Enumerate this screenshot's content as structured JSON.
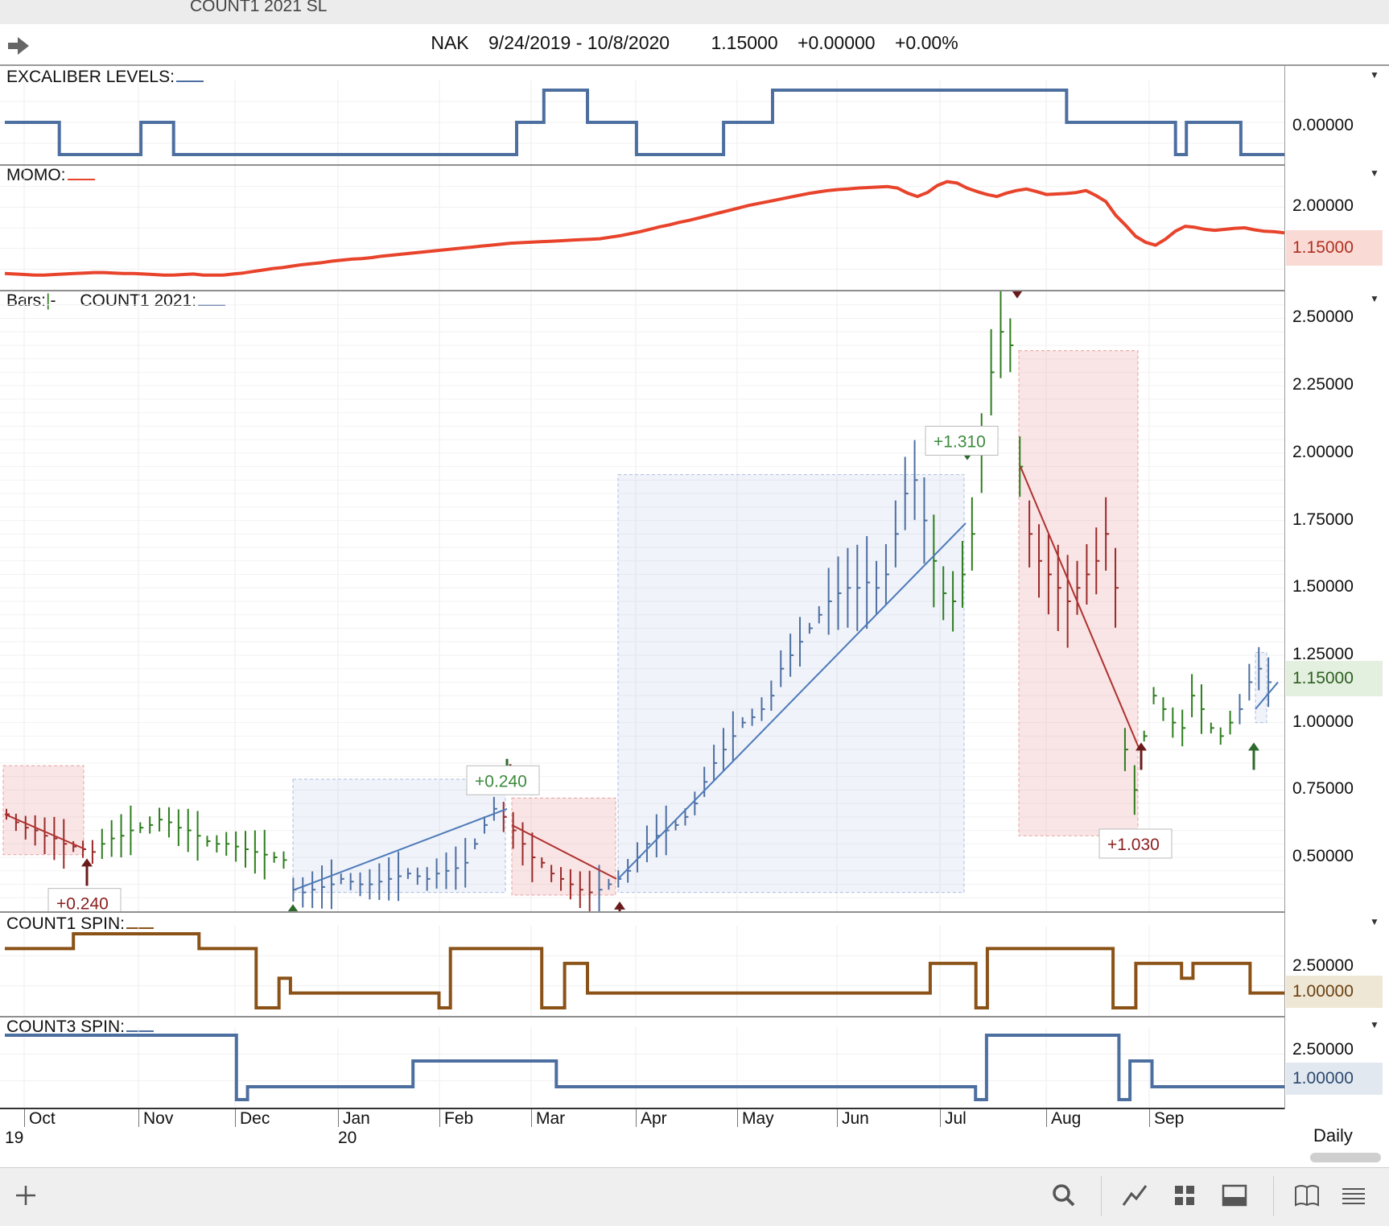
{
  "window": {
    "title_fragment": "COUNT1 2021  SL"
  },
  "header": {
    "symbol": "NAK",
    "date_range": "9/24/2019 - 10/8/2020",
    "last": "1.15000",
    "change": "+0.00000",
    "change_pct": "+0.00%"
  },
  "panes": {
    "excaliber": {
      "label": "EXCALIBER LEVELS:",
      "tick": "0.00000",
      "values": [
        1,
        1,
        1,
        1,
        1,
        1,
        1,
        1,
        1,
        1,
        0,
        0,
        0,
        0,
        0,
        0,
        0,
        0,
        0,
        0,
        0,
        0,
        0,
        0,
        0,
        1,
        1,
        1,
        1,
        1,
        1,
        0,
        0,
        0,
        0,
        0,
        0,
        0,
        0,
        0,
        0,
        0,
        0,
        0,
        0,
        0,
        0,
        0,
        0,
        0,
        0,
        0,
        0,
        0,
        0,
        0,
        0,
        0,
        0,
        0,
        0,
        0,
        0,
        0,
        0,
        0,
        0,
        0,
        0,
        0,
        0,
        0,
        0,
        0,
        0,
        0,
        0,
        0,
        0,
        0,
        0,
        0,
        0,
        0,
        0,
        0,
        0,
        0,
        0,
        0,
        0,
        0,
        0,
        0,
        1,
        1,
        1,
        1,
        1,
        2,
        2,
        2,
        2,
        2,
        2,
        2,
        2,
        1,
        1,
        1,
        1,
        1,
        1,
        1,
        1,
        1,
        0,
        0,
        0,
        0,
        0,
        0,
        0,
        0,
        0,
        0,
        0,
        0,
        0,
        0,
        0,
        0,
        1,
        1,
        1,
        1,
        1,
        1,
        1,
        1,
        1,
        2,
        2,
        2,
        2,
        2,
        2,
        2,
        2,
        2,
        2,
        2,
        2,
        2,
        2,
        2,
        2,
        2,
        2,
        2,
        2,
        2,
        2,
        2,
        2,
        2,
        2,
        2,
        2,
        2,
        2,
        2,
        2,
        2,
        2,
        2,
        2,
        2,
        2,
        2,
        2,
        2,
        2,
        2,
        2,
        2,
        2,
        2,
        2,
        2,
        2,
        2,
        2,
        2,
        2,
        1,
        1,
        1,
        1,
        1,
        1,
        1,
        1,
        1,
        1,
        1,
        1,
        1,
        1,
        1,
        1,
        1,
        1,
        1,
        1,
        0,
        0,
        1,
        1,
        1,
        1,
        1,
        1,
        1,
        1,
        1,
        1,
        0,
        0,
        0,
        0,
        0,
        0,
        0,
        0
      ]
    },
    "momo": {
      "label": "MOMO:",
      "ticks": [
        "2.00000"
      ],
      "last_tag": "1.15000"
    },
    "bars": {
      "label": "Bars:",
      "label2": "COUNT1 2021:",
      "ticks": [
        "2.50000",
        "2.25000",
        "2.00000",
        "1.75000",
        "1.50000",
        "1.25000",
        "1.00000",
        "0.75000",
        "0.50000"
      ],
      "last_tag": "1.15000",
      "annotations": [
        "+0.240",
        "+0.240",
        "+1.310",
        "+1.030"
      ]
    },
    "count1": {
      "label": "COUNT1 SPIN:",
      "ticks": [
        "2.50000"
      ],
      "last_tag": "1.00000"
    },
    "count3": {
      "label": "COUNT3 SPIN:",
      "ticks": [
        "2.50000"
      ],
      "last_tag": "1.00000"
    }
  },
  "chart_data": [
    {
      "type": "line",
      "title": "MOMO",
      "values": [
        0.33,
        0.32,
        0.31,
        0.3,
        0.3,
        0.31,
        0.32,
        0.33,
        0.34,
        0.35,
        0.35,
        0.34,
        0.33,
        0.33,
        0.32,
        0.31,
        0.3,
        0.3,
        0.31,
        0.32,
        0.3,
        0.3,
        0.3,
        0.32,
        0.34,
        0.37,
        0.4,
        0.43,
        0.45,
        0.48,
        0.51,
        0.53,
        0.55,
        0.58,
        0.6,
        0.62,
        0.63,
        0.65,
        0.68,
        0.7,
        0.72,
        0.74,
        0.76,
        0.78,
        0.8,
        0.82,
        0.84,
        0.86,
        0.88,
        0.9,
        0.92,
        0.94,
        0.95,
        0.96,
        0.97,
        0.98,
        0.99,
        1.0,
        1.01,
        1.02,
        1.03,
        1.06,
        1.09,
        1.13,
        1.17,
        1.22,
        1.27,
        1.31,
        1.36,
        1.4,
        1.45,
        1.5,
        1.55,
        1.6,
        1.65,
        1.7,
        1.74,
        1.78,
        1.82,
        1.86,
        1.9,
        1.94,
        1.97,
        2.0,
        2.02,
        2.03,
        2.05,
        2.06,
        2.07,
        2.08,
        2.05,
        1.95,
        1.88,
        1.96,
        2.1,
        2.18,
        2.15,
        2.05,
        1.98,
        1.92,
        1.88,
        1.95,
        2.0,
        2.03,
        1.98,
        1.92,
        1.93,
        1.94,
        1.96,
        2.0,
        1.9,
        1.78,
        1.5,
        1.3,
        1.08,
        0.96,
        0.9,
        1.02,
        1.18,
        1.28,
        1.26,
        1.22,
        1.2,
        1.22,
        1.24,
        1.25,
        1.21,
        1.18,
        1.17,
        1.15
      ],
      "yticks": [
        2.0
      ],
      "last": 1.15
    },
    {
      "type": "bar",
      "title": "Bars",
      "x_months": [
        "Oct",
        "Nov",
        "Dec",
        "Jan",
        "Feb",
        "Mar",
        "Apr",
        "May",
        "Jun",
        "Jul",
        "Aug",
        "Sep"
      ],
      "ylim": [
        0.3,
        2.6
      ],
      "ticks": [
        0.5,
        0.75,
        1.0,
        1.25,
        1.5,
        1.75,
        2.0,
        2.25,
        2.5
      ],
      "closes": [
        0.66,
        0.63,
        0.61,
        0.6,
        0.58,
        0.57,
        0.55,
        0.54,
        0.53,
        0.52,
        0.55,
        0.57,
        0.58,
        0.6,
        0.61,
        0.62,
        0.64,
        0.63,
        0.61,
        0.6,
        0.58,
        0.56,
        0.55,
        0.55,
        0.54,
        0.53,
        0.52,
        0.51,
        0.5,
        0.49,
        0.38,
        0.37,
        0.38,
        0.39,
        0.4,
        0.42,
        0.41,
        0.4,
        0.4,
        0.41,
        0.42,
        0.43,
        0.44,
        0.43,
        0.42,
        0.44,
        0.45,
        0.46,
        0.48,
        0.55,
        0.62,
        0.68,
        0.65,
        0.6,
        0.55,
        0.5,
        0.48,
        0.44,
        0.42,
        0.4,
        0.38,
        0.37,
        0.38,
        0.4,
        0.42,
        0.45,
        0.5,
        0.55,
        0.58,
        0.6,
        0.62,
        0.65,
        0.7,
        0.78,
        0.85,
        0.9,
        0.95,
        1.0,
        1.02,
        1.05,
        1.1,
        1.2,
        1.25,
        1.3,
        1.35,
        1.4,
        1.45,
        1.48,
        1.5,
        1.5,
        1.52,
        1.5,
        1.55,
        1.7,
        1.85,
        1.9,
        1.75,
        1.6,
        1.48,
        1.45,
        1.55,
        1.7,
        2.0,
        2.3,
        2.45,
        2.4,
        1.95,
        1.7,
        1.6,
        1.55,
        1.5,
        1.45,
        1.5,
        1.55,
        1.6,
        1.7,
        1.5,
        0.9,
        0.75,
        0.95,
        1.1,
        1.05,
        1.0,
        0.98,
        1.1,
        1.05,
        0.98,
        0.95,
        1.0,
        1.05,
        1.15,
        1.2,
        1.15
      ]
    },
    {
      "type": "line",
      "title": "COUNT1 SPIN",
      "values": [
        2.5,
        2.5,
        2.5,
        2.5,
        2.5,
        2.5,
        3.0,
        3.0,
        3.0,
        3.0,
        3.0,
        3.0,
        3.0,
        3.0,
        3.0,
        3.0,
        3.0,
        2.5,
        2.5,
        2.5,
        2.5,
        2.5,
        0.5,
        0.5,
        1.5,
        1.0,
        1.0,
        1.0,
        1.0,
        1.0,
        1.0,
        1.0,
        1.0,
        1.0,
        1.0,
        1.0,
        1.0,
        1.0,
        0.5,
        2.5,
        2.5,
        2.5,
        2.5,
        2.5,
        2.5,
        2.5,
        2.5,
        0.5,
        0.5,
        2.0,
        2.0,
        1.0,
        1.0,
        1.0,
        1.0,
        1.0,
        1.0,
        1.0,
        1.0,
        1.0,
        1.0,
        1.0,
        1.0,
        1.0,
        1.0,
        1.0,
        1.0,
        1.0,
        1.0,
        1.0,
        1.0,
        1.0,
        1.0,
        1.0,
        1.0,
        1.0,
        1.0,
        1.0,
        1.0,
        1.0,
        1.0,
        2.0,
        2.0,
        2.0,
        2.0,
        0.5,
        2.5,
        2.5,
        2.5,
        2.5,
        2.5,
        2.5,
        2.5,
        2.5,
        2.5,
        2.5,
        2.5,
        0.5,
        0.5,
        2.0,
        2.0,
        2.0,
        2.0,
        1.5,
        2.0,
        2.0,
        2.0,
        2.0,
        2.0,
        1.0,
        1.0,
        1.0
      ],
      "last": 1.0
    },
    {
      "type": "line",
      "title": "COUNT3 SPIN",
      "values": [
        3.0,
        3.0,
        3.0,
        3.0,
        3.0,
        3.0,
        3.0,
        3.0,
        3.0,
        3.0,
        3.0,
        3.0,
        3.0,
        3.0,
        3.0,
        3.0,
        3.0,
        3.0,
        3.0,
        3.0,
        3.0,
        0.5,
        1.0,
        1.0,
        1.0,
        1.0,
        1.0,
        1.0,
        1.0,
        1.0,
        1.0,
        1.0,
        1.0,
        1.0,
        1.0,
        1.0,
        1.0,
        2.0,
        2.0,
        2.0,
        2.0,
        2.0,
        2.0,
        2.0,
        2.0,
        2.0,
        2.0,
        2.0,
        2.0,
        2.0,
        1.0,
        1.0,
        1.0,
        1.0,
        1.0,
        1.0,
        1.0,
        1.0,
        1.0,
        1.0,
        1.0,
        1.0,
        1.0,
        1.0,
        1.0,
        1.0,
        1.0,
        1.0,
        1.0,
        1.0,
        1.0,
        1.0,
        1.0,
        1.0,
        1.0,
        1.0,
        1.0,
        1.0,
        1.0,
        1.0,
        1.0,
        1.0,
        1.0,
        1.0,
        1.0,
        1.0,
        1.0,
        1.0,
        0.5,
        3.0,
        3.0,
        3.0,
        3.0,
        3.0,
        3.0,
        3.0,
        3.0,
        3.0,
        3.0,
        3.0,
        3.0,
        0.5,
        2.0,
        2.0,
        1.0,
        1.0,
        1.0,
        1.0,
        1.0,
        1.0,
        1.0,
        1.0,
        1.0,
        1.0,
        1.0,
        1.0
      ],
      "last": 1.0
    }
  ],
  "xaxis": {
    "months": [
      "Oct",
      "Nov",
      "Dec",
      "Jan",
      "Feb",
      "Mar",
      "Apr",
      "May",
      "Jun",
      "Jul",
      "Aug",
      "Sep"
    ],
    "years": [
      "19",
      "20"
    ]
  },
  "timeframe": "Daily",
  "colors": {
    "blue": "#4d6fa0",
    "red": "#e8432b",
    "brown": "#8a5216",
    "green_bar": "#2e7d1e",
    "dark_red": "#7a1a1a"
  }
}
